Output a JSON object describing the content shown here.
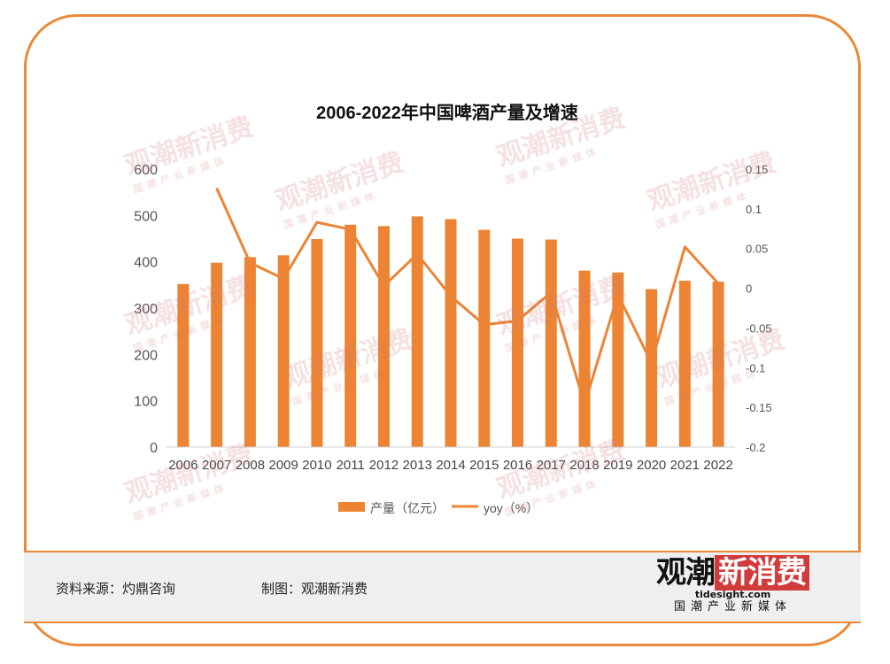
{
  "chart_data": {
    "type": "bar",
    "title": "2006-2022年中国啤酒产量及增速",
    "categories": [
      "2006",
      "2007",
      "2008",
      "2009",
      "2010",
      "2011",
      "2012",
      "2013",
      "2014",
      "2015",
      "2016",
      "2017",
      "2018",
      "2019",
      "2020",
      "2021",
      "2022"
    ],
    "series": [
      {
        "name": "产量（亿元）",
        "kind": "bar",
        "axis": "left",
        "values": [
          352,
          398,
          410,
          414,
          449,
          480,
          477,
          498,
          492,
          469,
          450,
          448,
          381,
          377,
          341,
          359,
          357
        ]
      },
      {
        "name": "yoy（%）",
        "kind": "line",
        "axis": "right",
        "values": [
          null,
          0.126,
          0.032,
          0.012,
          0.083,
          0.074,
          0.003,
          0.043,
          -0.01,
          -0.046,
          -0.041,
          -0.005,
          -0.146,
          -0.008,
          -0.094,
          0.052,
          0.006
        ]
      }
    ],
    "ylim": [
      0,
      600
    ],
    "yticks": [
      0,
      100,
      200,
      300,
      400,
      500,
      600
    ],
    "y2lim": [
      -0.2,
      0.15
    ],
    "y2ticks": [
      "-0.2",
      "-0.15",
      "-0.1",
      "-0.05",
      "0",
      "0.05",
      "0.1",
      "0.15"
    ],
    "legend_position": "bottom",
    "grid": false,
    "colors": {
      "bar": "#ec8434",
      "line": "#ec8434"
    }
  },
  "footer": {
    "source": "资料来源：灼鼎咨询",
    "made_by": "制图：观潮新消费"
  },
  "logo": {
    "main_dark": "观潮",
    "main_red": "新消费",
    "site": "tidesight.com",
    "tagline": "国潮产业新媒体"
  },
  "watermark": {
    "main": "观潮新消费",
    "site": "tidesight.com",
    "tagline": "国潮产业新媒体"
  }
}
